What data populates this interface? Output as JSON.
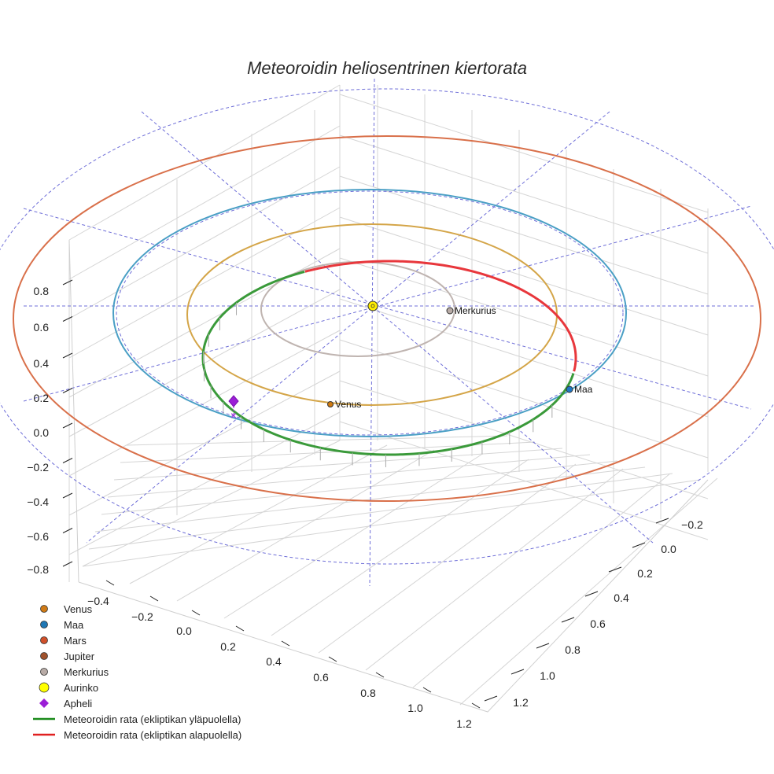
{
  "chart_data": {
    "type": "line",
    "title": "Meteoroidin heliosentrinen kiertorata",
    "projection": "3d",
    "z_ticks": [
      "0.8",
      "0.6",
      "0.4",
      "0.2",
      "0.0",
      "−0.2",
      "−0.4",
      "−0.6",
      "−0.8"
    ],
    "x_ticks": [
      "−0.4",
      "−0.2",
      "0.0",
      "0.2",
      "0.4",
      "0.6",
      "0.8",
      "1.0",
      "1.2"
    ],
    "y_ticks": [
      "−0.2",
      "0.0",
      "0.2",
      "0.4",
      "0.6",
      "0.8",
      "1.0",
      "1.2"
    ],
    "orbits": [
      {
        "name": "Mars",
        "semi_major_au": 1.52,
        "color": "#d9704a"
      },
      {
        "name": "Maa",
        "semi_major_au": 1.0,
        "color": "#4a9fc5"
      },
      {
        "name": "Venus",
        "semi_major_au": 0.72,
        "color": "#d4a548"
      },
      {
        "name": "Merkurius",
        "semi_major_au": 0.39,
        "color": "#bfb4b0"
      }
    ],
    "meteoroid_orbit": {
      "perihelion_au": 0.62,
      "aphelion_au": 1.0,
      "color_above": "#3a9a3a",
      "color_below": "#e8373c"
    },
    "points": [
      {
        "name": "Aurinko",
        "label": "",
        "color": "#ffee00"
      },
      {
        "name": "Merkurius",
        "label": "Merkurius",
        "color": "#b8aba6"
      },
      {
        "name": "Venus",
        "label": "Venus",
        "color": "#d07a10"
      },
      {
        "name": "Maa",
        "label": "Maa",
        "color": "#1f77c4"
      },
      {
        "name": "Apheli",
        "label": "",
        "color": "#9b1fd6"
      }
    ],
    "legend": [
      {
        "label": "Venus",
        "marker": "circle",
        "color": "#cf7a16"
      },
      {
        "label": "Maa",
        "marker": "circle",
        "color": "#1f77b4"
      },
      {
        "label": "Mars",
        "marker": "circle",
        "color": "#d0502a"
      },
      {
        "label": "Jupiter",
        "marker": "circle",
        "color": "#a0522d"
      },
      {
        "label": "Merkurius",
        "marker": "circle",
        "color": "#b8aba6"
      },
      {
        "label": "Aurinko",
        "marker": "circle-large",
        "color": "#ffff00"
      },
      {
        "label": "Apheli",
        "marker": "diamond",
        "color": "#9b1fd6"
      },
      {
        "label": "Meteoroidin rata (ekliptikan yläpuolella)",
        "marker": "line",
        "color": "#1a8a1a"
      },
      {
        "label": "Meteoroidin rata (ekliptikan alapuolella)",
        "marker": "line",
        "color": "#e02020"
      }
    ],
    "legend_position": "bottom-left",
    "grid": true
  }
}
